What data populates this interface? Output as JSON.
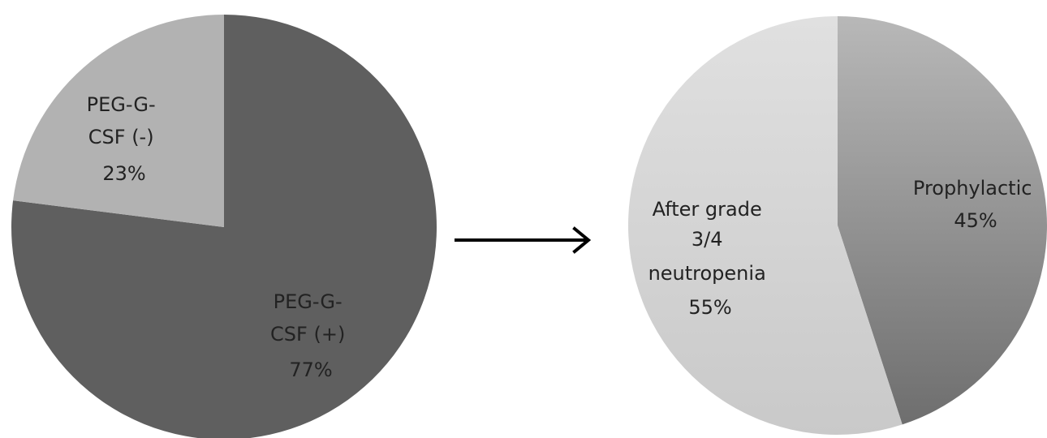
{
  "chart_data": [
    {
      "type": "pie",
      "slices": [
        {
          "label_lines": [
            "PEG-G-",
            "CSF (+)",
            "77%"
          ],
          "value": 77,
          "color": "#5f5f5f"
        },
        {
          "label_lines": [
            "PEG-G-",
            "CSF (-)",
            "23%"
          ],
          "value": 23,
          "color": "#b2b2b2"
        }
      ]
    },
    {
      "type": "pie",
      "slices": [
        {
          "label_lines": [
            "Prophylactic",
            "45%"
          ],
          "value": 45,
          "color": "#9a9a9a"
        },
        {
          "label_lines": [
            "After grade",
            "3/4",
            "neutropenia",
            "55%"
          ],
          "value": 55,
          "color": "#d7d7d7"
        }
      ]
    }
  ],
  "arrow": {
    "direction": "right"
  }
}
